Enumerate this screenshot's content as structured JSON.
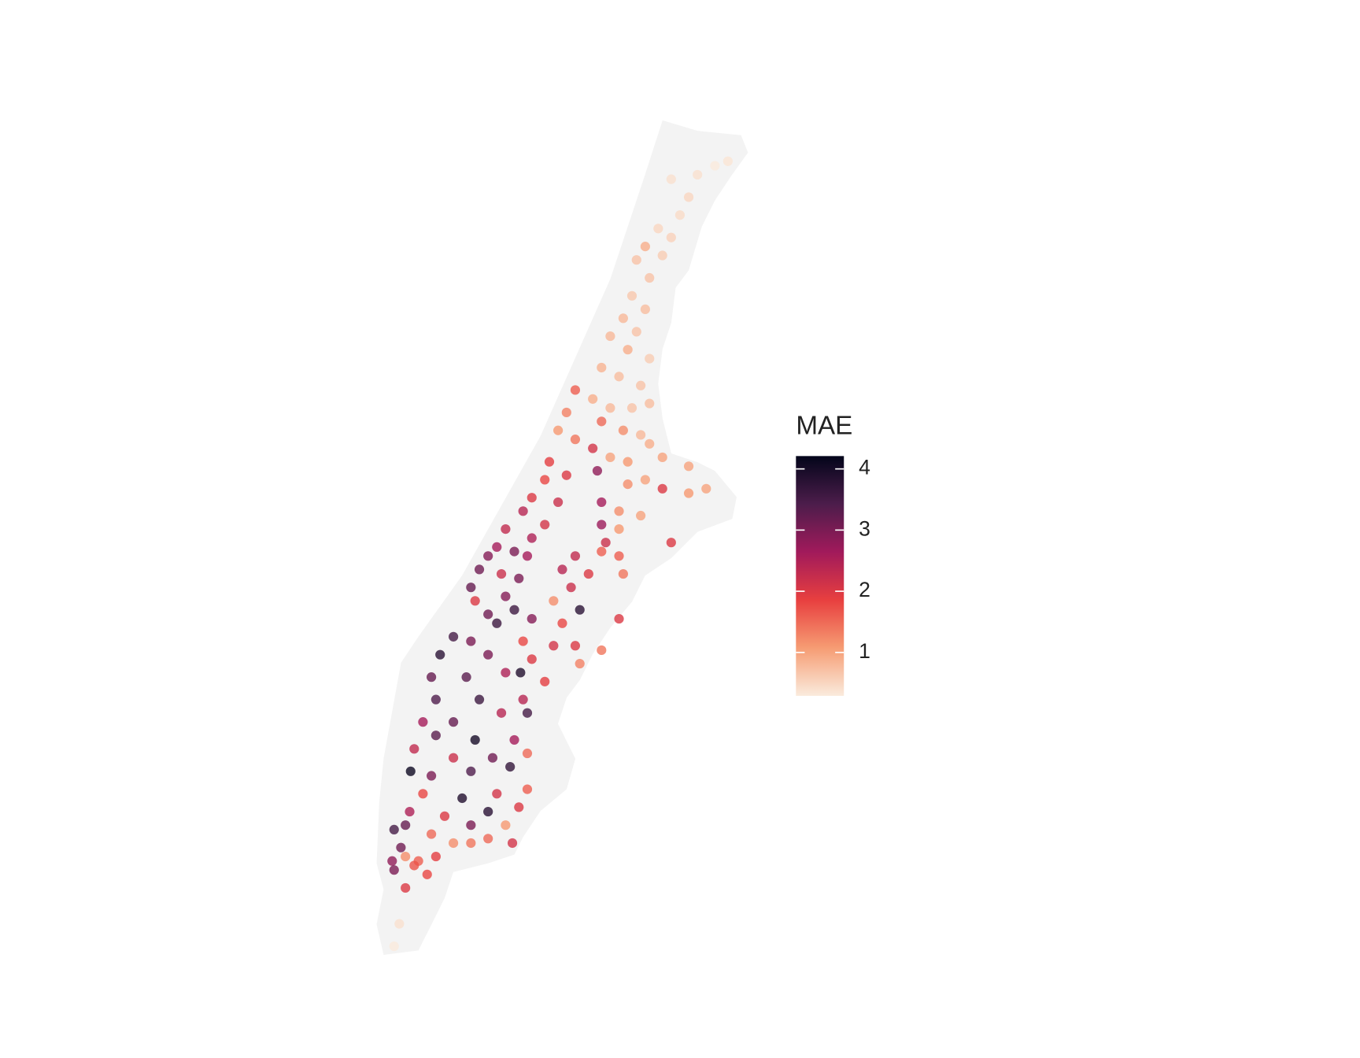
{
  "chart_data": {
    "type": "map",
    "legend_title": "MAE",
    "colorbar": {
      "lim": [
        0.29,
        4.21
      ],
      "ticks": [
        1,
        2,
        3,
        4
      ]
    },
    "colors": [
      "#faebdd",
      "#f69c73",
      "#e83f3f",
      "#a11a5b",
      "#4c1d4b",
      "#03051a"
    ],
    "land_color": "#f3f3f3",
    "lon": [
      -73.9141,
      -73.9101,
      -73.9195,
      -73.9276,
      -73.9222,
      -73.9249,
      -73.9316,
      -73.9276,
      -73.9356,
      -73.9303,
      -73.9383,
      -73.9343,
      -73.9397,
      -73.9356,
      -73.9424,
      -73.9383,
      -73.9464,
      -73.941,
      -73.9343,
      -73.9491,
      -73.9437,
      -73.937,
      -73.9572,
      -73.9518,
      -73.9464,
      -73.9397,
      -73.9343,
      -73.9599,
      -73.9491,
      -73.9625,
      -73.9424,
      -73.937,
      -73.9572,
      -73.9343,
      -73.9652,
      -73.9518,
      -73.9464,
      -73.941,
      -73.9303,
      -73.9222,
      -73.9599,
      -73.9504,
      -73.9666,
      -73.9356,
      -73.941,
      -73.9168,
      -73.9222,
      -73.9706,
      -73.9625,
      -73.9491,
      -73.9303,
      -73.9437,
      -73.9733,
      -73.9666,
      -73.9787,
      -73.9491,
      -73.9437,
      -73.937,
      -73.9276,
      -73.9706,
      -73.9814,
      -73.9478,
      -73.976,
      -73.9841,
      -73.9491,
      -73.9572,
      -73.9437,
      -73.972,
      -73.9868,
      -73.9612,
      -73.98,
      -73.9746,
      -73.9531,
      -73.9424,
      -73.9894,
      -73.9585,
      -73.9787,
      -73.9881,
      -73.9639,
      -73.9558,
      -73.976,
      -73.9841,
      -73.9706,
      -73.9612,
      -73.9437,
      -73.9948,
      -73.9814,
      -73.9894,
      -73.9733,
      -73.9639,
      -73.9572,
      -73.9491,
      -73.9989,
      -73.9841,
      -73.9706,
      -73.9558,
      -74.0016,
      -73.9908,
      -73.9787,
      -73.9741,
      -73.9666,
      -74.0002,
      -73.9868,
      -73.9733,
      -74.0042,
      -73.9948,
      -73.98,
      -73.972,
      -74.0002,
      -73.9881,
      -73.976,
      -74.0069,
      -73.9948,
      -73.9827,
      -73.972,
      -74.008,
      -74.0016,
      -73.9894,
      -73.9773,
      -74.0042,
      -73.9921,
      -73.9814,
      -73.972,
      -74.0083,
      -73.9975,
      -73.9841,
      -73.9746,
      -74.0096,
      -74.0016,
      -73.9894,
      -73.9787,
      -74.0131,
      -73.9948,
      -73.9841,
      -73.9766,
      -74.011,
      -74.0056,
      -74.0002,
      -73.9894,
      -74.0137,
      -74.0096,
      -74.0029,
      -74.0131,
      -74.0096,
      -74.0069,
      -74.0115,
      -74.0131
    ],
    "lat": [
      40.876,
      40.877,
      40.874,
      40.873,
      40.869,
      40.865,
      40.862,
      40.86,
      40.858,
      40.856,
      40.855,
      40.851,
      40.847,
      40.844,
      40.842,
      40.839,
      40.838,
      40.835,
      40.833,
      40.831,
      40.829,
      40.827,
      40.826,
      40.824,
      40.822,
      40.822,
      40.823,
      40.821,
      40.819,
      40.817,
      40.817,
      40.816,
      40.815,
      40.814,
      40.81,
      40.813,
      40.811,
      40.81,
      40.811,
      40.809,
      40.807,
      40.808,
      40.806,
      40.806,
      40.805,
      40.804,
      40.803,
      40.802,
      40.801,
      40.801,
      40.804,
      40.799,
      40.799,
      40.796,
      40.795,
      40.796,
      40.795,
      40.798,
      40.792,
      40.793,
      40.791,
      40.792,
      40.79,
      40.789,
      40.79,
      40.789,
      40.789,
      40.789,
      40.786,
      40.786,
      40.785,
      40.784,
      40.785,
      40.785,
      40.782,
      40.782,
      40.78,
      40.779,
      40.779,
      40.777,
      40.777,
      40.776,
      40.775,
      40.774,
      40.775,
      40.771,
      40.774,
      40.77,
      40.77,
      40.769,
      40.769,
      40.768,
      40.767,
      40.767,
      40.766,
      40.765,
      40.762,
      40.762,
      40.763,
      40.763,
      40.761,
      40.757,
      40.757,
      40.757,
      40.752,
      40.752,
      40.754,
      40.754,
      40.749,
      40.748,
      40.748,
      40.746,
      40.744,
      40.744,
      40.745,
      40.741,
      40.74,
      40.741,
      40.742,
      40.736,
      40.735,
      40.736,
      40.737,
      40.732,
      40.731,
      40.732,
      40.733,
      40.729,
      40.727,
      40.729,
      40.729,
      40.728,
      40.725,
      40.726,
      40.725,
      40.724,
      40.721,
      40.722,
      40.725,
      40.721,
      40.722,
      40.718,
      40.719,
      40.715,
      40.72,
      40.707,
      40.702
    ],
    "values": [
      0.3,
      0.35,
      0.4,
      0.4,
      0.5,
      0.45,
      0.5,
      0.55,
      0.9,
      0.6,
      0.7,
      0.7,
      0.65,
      0.75,
      0.8,
      0.7,
      0.8,
      0.9,
      0.6,
      0.85,
      0.75,
      0.7,
      1.6,
      0.9,
      0.8,
      0.7,
      0.75,
      1.3,
      1.5,
      1.1,
      1.2,
      0.8,
      1.4,
      0.9,
      1.9,
      2.1,
      1.0,
      1.1,
      1.0,
      1.0,
      2.0,
      2.8,
      1.8,
      1.0,
      1.2,
      1.0,
      1.1,
      2.0,
      2.2,
      2.6,
      2.0,
      1.2,
      2.4,
      2.1,
      2.3,
      2.7,
      1.1,
      1.0,
      2.0,
      2.5,
      2.6,
      2.2,
      3.0,
      2.9,
      1.6,
      2.3,
      1.6,
      2.6,
      3.1,
      2.4,
      2.2,
      3.0,
      2.0,
      1.4,
      3.2,
      2.2,
      2.9,
      2.0,
      1.2,
      3.8,
      3.6,
      3.1,
      2.9,
      1.8,
      2.0,
      3.5,
      3.6,
      3.0,
      1.8,
      2.1,
      2.0,
      1.4,
      3.8,
      3.0,
      2.0,
      1.3,
      3.2,
      3.3,
      2.5,
      3.9,
      1.9,
      3.4,
      3.6,
      2.4,
      2.6,
      3.2,
      2.4,
      3.5,
      3.3,
      4.0,
      2.6,
      2.3,
      2.2,
      3.1,
      1.5,
      4.1,
      3.0,
      3.4,
      3.7,
      1.8,
      3.9,
      2.1,
      1.6,
      2.5,
      2.0,
      3.8,
      2.0,
      3.2,
      1.5,
      3.0,
      1.1,
      3.5,
      1.2,
      1.5,
      2.1,
      3.1,
      1.6,
      1.9,
      1.4,
      2.8,
      1.2,
      1.8,
      3.0,
      2.0,
      1.7,
      0.4,
      0.3
    ]
  }
}
